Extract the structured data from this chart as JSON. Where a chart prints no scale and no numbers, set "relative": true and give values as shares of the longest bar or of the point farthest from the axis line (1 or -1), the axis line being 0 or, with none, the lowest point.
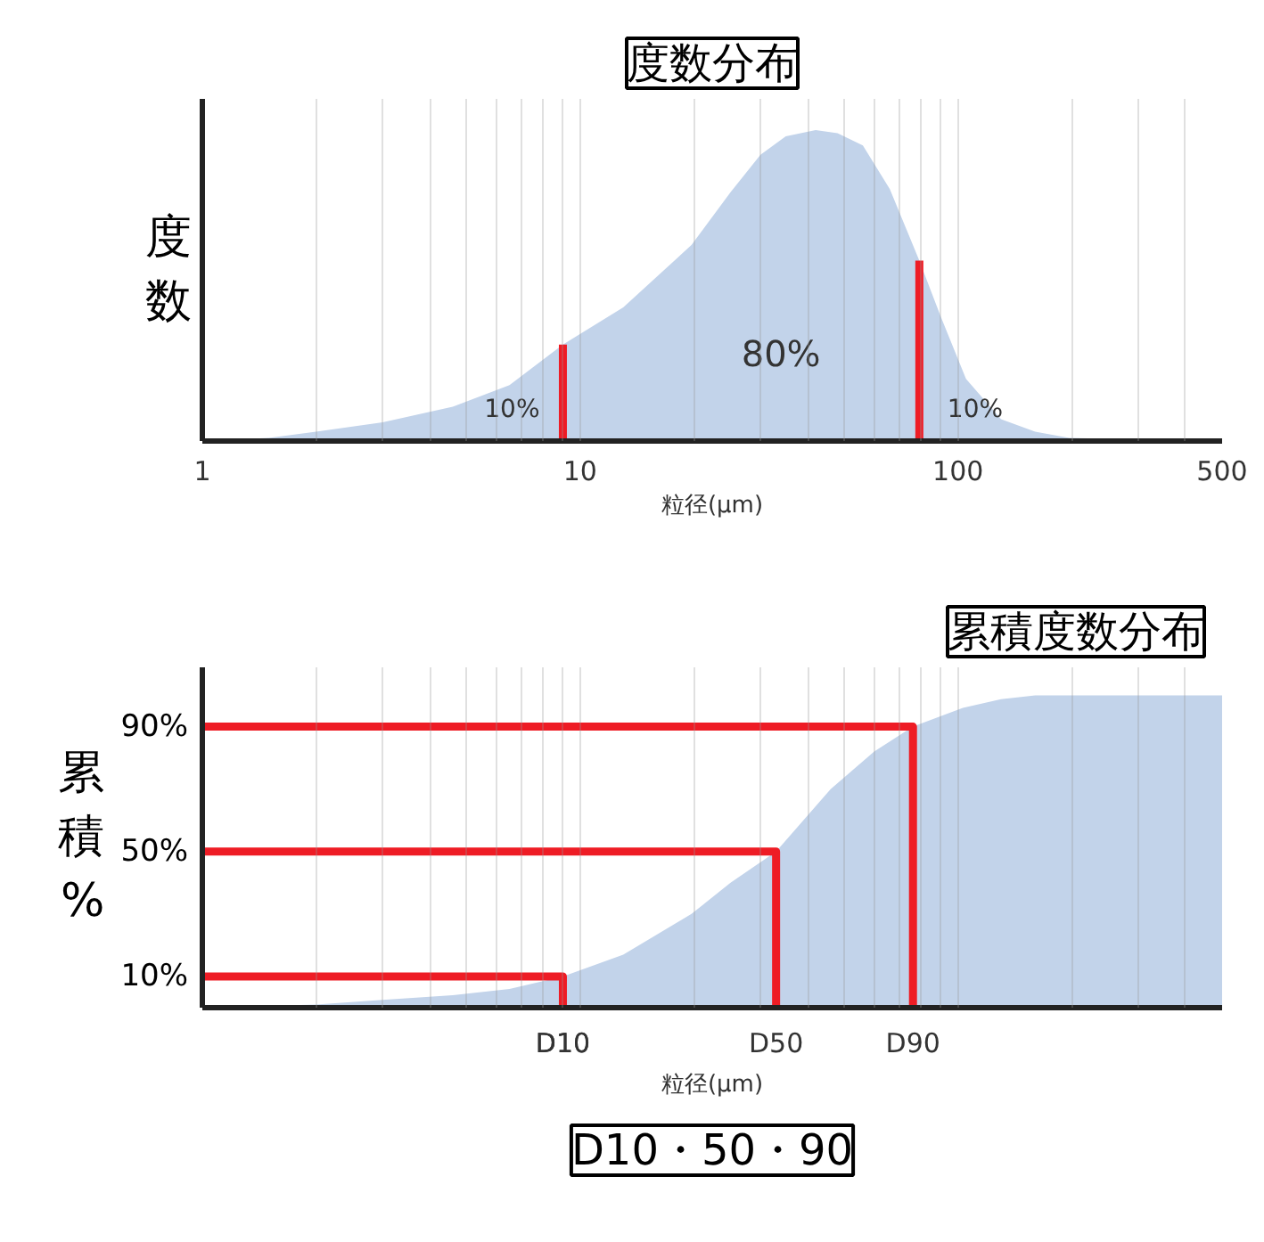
{
  "chart_data": [
    {
      "type": "area",
      "title": "度数分布",
      "ylabel": "度数",
      "xlabel": "粒径(μm)",
      "relative": true,
      "log": "x",
      "grid": "x",
      "xlim": [
        1,
        500
      ],
      "xticks": [
        1,
        {
          "value": 2,
          "label": null
        },
        {
          "value": 3,
          "label": null
        },
        {
          "value": 4,
          "label": null
        },
        {
          "value": 5,
          "label": null
        },
        {
          "value": 6,
          "label": null
        },
        {
          "value": 7,
          "label": null
        },
        {
          "value": 8,
          "label": null
        },
        {
          "value": 9,
          "label": null
        },
        10,
        {
          "value": 20,
          "label": null
        },
        {
          "value": 30,
          "label": null
        },
        {
          "value": 40,
          "label": null
        },
        {
          "value": 50,
          "label": null
        },
        {
          "value": 60,
          "label": null
        },
        {
          "value": 70,
          "label": null
        },
        {
          "value": 80,
          "label": null
        },
        {
          "value": 90,
          "label": null
        },
        100,
        {
          "value": 200,
          "label": null
        },
        {
          "value": 300,
          "label": null
        },
        {
          "value": 400,
          "label": null
        },
        500
      ],
      "series": [
        {
          "color": "#c2d3ea",
          "x": [
            1,
            1.5,
            2,
            3,
            4.6,
            6.5,
            9,
            13,
            19.7,
            25,
            30,
            35,
            42,
            48,
            56,
            66,
            79,
            90,
            105,
            130,
            160,
            197,
            300,
            500
          ],
          "values": [
            0,
            0.01,
            0.03,
            0.06,
            0.11,
            0.18,
            0.31,
            0.43,
            0.63,
            0.8,
            0.92,
            0.98,
            1,
            0.99,
            0.95,
            0.81,
            0.58,
            0.4,
            0.2,
            0.07,
            0.03,
            0.01,
            0.005,
            0
          ]
        },
        {
          "type": "line",
          "color": "#ee1c25",
          "x": [
            9,
            9
          ],
          "values": [
            0,
            0.31
          ]
        },
        {
          "type": "line",
          "color": "#ee1c25",
          "x": [
            79,
            79
          ],
          "values": [
            0,
            0.58
          ]
        }
      ],
      "annotations": [
        "10%",
        "80%",
        "10%"
      ]
    },
    {
      "type": "area",
      "title": "累積度数分布",
      "ylabel": "累積%",
      "xlabel": "粒径(μm)",
      "log": "x",
      "grid": "x",
      "tick_labels": "y",
      "xlim": [
        1,
        500
      ],
      "ylim": [
        0,
        109
      ],
      "xticks": [
        {
          "value": 2,
          "label": null
        },
        {
          "value": 3,
          "label": null
        },
        {
          "value": 4,
          "label": null
        },
        {
          "value": 5,
          "label": null
        },
        {
          "value": 6,
          "label": null
        },
        {
          "value": 7,
          "label": null
        },
        {
          "value": 8,
          "label": null
        },
        {
          "value": 9,
          "label": null
        },
        {
          "value": 10,
          "label": null
        },
        {
          "value": 20,
          "label": null
        },
        {
          "value": 30,
          "label": null
        },
        {
          "value": 40,
          "label": null
        },
        {
          "value": 50,
          "label": null
        },
        {
          "value": 60,
          "label": null
        },
        {
          "value": 70,
          "label": null
        },
        {
          "value": 80,
          "label": null
        },
        {
          "value": 90,
          "label": null
        },
        {
          "value": 100,
          "label": null
        },
        {
          "value": 200,
          "label": null
        },
        {
          "value": 300,
          "label": null
        },
        {
          "value": 400,
          "label": null
        }
      ],
      "yticks": [
        {
          "value": 10,
          "label": "10%"
        },
        {
          "value": 50,
          "label": "50%"
        },
        {
          "value": 90,
          "label": "90%"
        }
      ],
      "series": [
        {
          "color": "#c2d3ea",
          "x": [
            1,
            2,
            3,
            4.6,
            6.5,
            9,
            13,
            19.7,
            25,
            33,
            46,
            60,
            76,
            103,
            130,
            160,
            500
          ],
          "values": [
            0,
            1,
            2.5,
            4,
            6,
            10,
            17,
            30,
            40,
            50,
            70,
            82,
            90,
            96,
            98.8,
            100,
            100
          ]
        },
        {
          "type": "line",
          "color": "#ee1c25",
          "x": [
            1,
            9,
            9
          ],
          "values": [
            10,
            10,
            0
          ]
        },
        {
          "type": "line",
          "color": "#ee1c25",
          "x": [
            1,
            33,
            33
          ],
          "values": [
            50,
            50,
            0
          ]
        },
        {
          "type": "line",
          "color": "#ee1c25",
          "x": [
            1,
            76,
            76
          ],
          "values": [
            90,
            90,
            0
          ]
        }
      ],
      "annotations": [
        {
          "text": "D10",
          "x": 9,
          "y": 0
        },
        {
          "text": "D50",
          "x": 33,
          "y": 0
        },
        {
          "text": "D90",
          "x": 76,
          "y": 0
        },
        "D10・50・90"
      ]
    }
  ]
}
